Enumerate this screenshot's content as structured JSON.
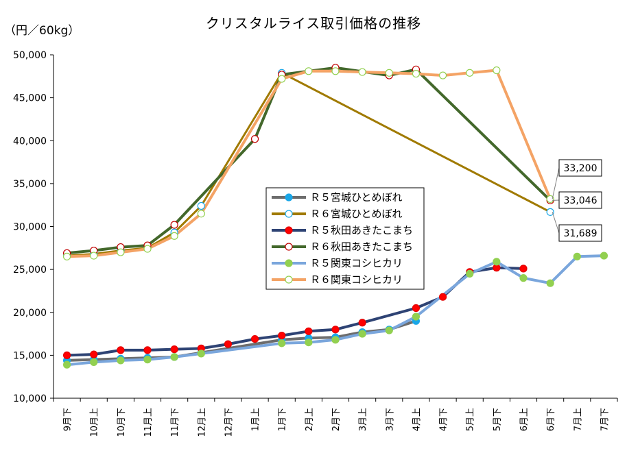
{
  "chart_data": {
    "type": "line",
    "title": "クリスタルライス取引価格の推移",
    "ylabel": "（円／60kg）",
    "ylim": [
      10000,
      50000
    ],
    "y_ticks": [
      "10,000",
      "15,000",
      "20,000",
      "25,000",
      "30,000",
      "35,000",
      "40,000",
      "45,000",
      "50,000"
    ],
    "categories": [
      "9月下",
      "10月上",
      "10月下",
      "11月上",
      "11月下",
      "12月上",
      "12月下",
      "1月上",
      "1月下",
      "2月上",
      "2月下",
      "3月上",
      "3月下",
      "4月上",
      "4月下",
      "5月上",
      "5月下",
      "6月上",
      "6月下",
      "7月上",
      "7月下"
    ],
    "legend_position": "center",
    "series": [
      {
        "name": "Ｒ５宮城ひとめぼれ",
        "color": "#6d6d6d",
        "marker_fill": "#1aa7e8",
        "marker_stroke": "#1aa7e8",
        "values": [
          14400,
          14500,
          14600,
          14700,
          14800,
          15300,
          null,
          null,
          16800,
          17000,
          17100,
          17700,
          18000,
          19000,
          null,
          null,
          null,
          null,
          null,
          null,
          null
        ]
      },
      {
        "name": "Ｒ６宮城ひとめぼれ",
        "color": "#a07a00",
        "marker_fill": "#ffffff",
        "marker_stroke": "#1aa7e8",
        "values": [
          26600,
          26800,
          27200,
          27500,
          29300,
          32400,
          null,
          null,
          47900,
          null,
          null,
          null,
          null,
          null,
          null,
          null,
          null,
          null,
          31689,
          null,
          null
        ]
      },
      {
        "name": "Ｒ５秋田あきたこまち",
        "color": "#2e4374",
        "marker_fill": "#ff0000",
        "marker_stroke": "#e00000",
        "values": [
          15000,
          15100,
          15600,
          15600,
          15700,
          15800,
          16300,
          16900,
          17300,
          17800,
          18000,
          18800,
          null,
          20500,
          21800,
          24700,
          25200,
          25100,
          null,
          null,
          null
        ]
      },
      {
        "name": "Ｒ６秋田あきたこまち",
        "color": "#43682b",
        "marker_fill": "#ffffff",
        "marker_stroke": "#c00000",
        "values": [
          26900,
          27200,
          27600,
          27800,
          30200,
          null,
          null,
          40200,
          47700,
          null,
          48500,
          null,
          47600,
          48300,
          null,
          null,
          null,
          null,
          33046,
          null,
          null
        ]
      },
      {
        "name": "Ｒ５関東コシヒカリ",
        "color": "#7aa6dc",
        "marker_fill": "#92d050",
        "marker_stroke": "#92d050",
        "values": [
          13900,
          14200,
          14400,
          14500,
          14800,
          15200,
          null,
          null,
          16400,
          16500,
          16800,
          17500,
          17900,
          19500,
          null,
          24500,
          25900,
          24000,
          23400,
          26500,
          26600
        ]
      },
      {
        "name": "Ｒ６関東コシヒカリ",
        "color": "#f4a365",
        "marker_fill": "#ffffff",
        "marker_stroke": "#92d050",
        "values": [
          26500,
          26600,
          27000,
          27400,
          28900,
          31500,
          null,
          null,
          47200,
          48100,
          48100,
          48000,
          47900,
          47800,
          47600,
          47900,
          48200,
          null,
          33200,
          null,
          null
        ]
      }
    ],
    "annotations": [
      {
        "text": "33,200",
        "series": "Ｒ６関東コシヒカリ",
        "category": "6月下"
      },
      {
        "text": "33,046",
        "series": "Ｒ６秋田あきたこまち",
        "category": "6月下"
      },
      {
        "text": "31,689",
        "series": "Ｒ６宮城ひとめぼれ",
        "category": "6月下"
      }
    ]
  }
}
